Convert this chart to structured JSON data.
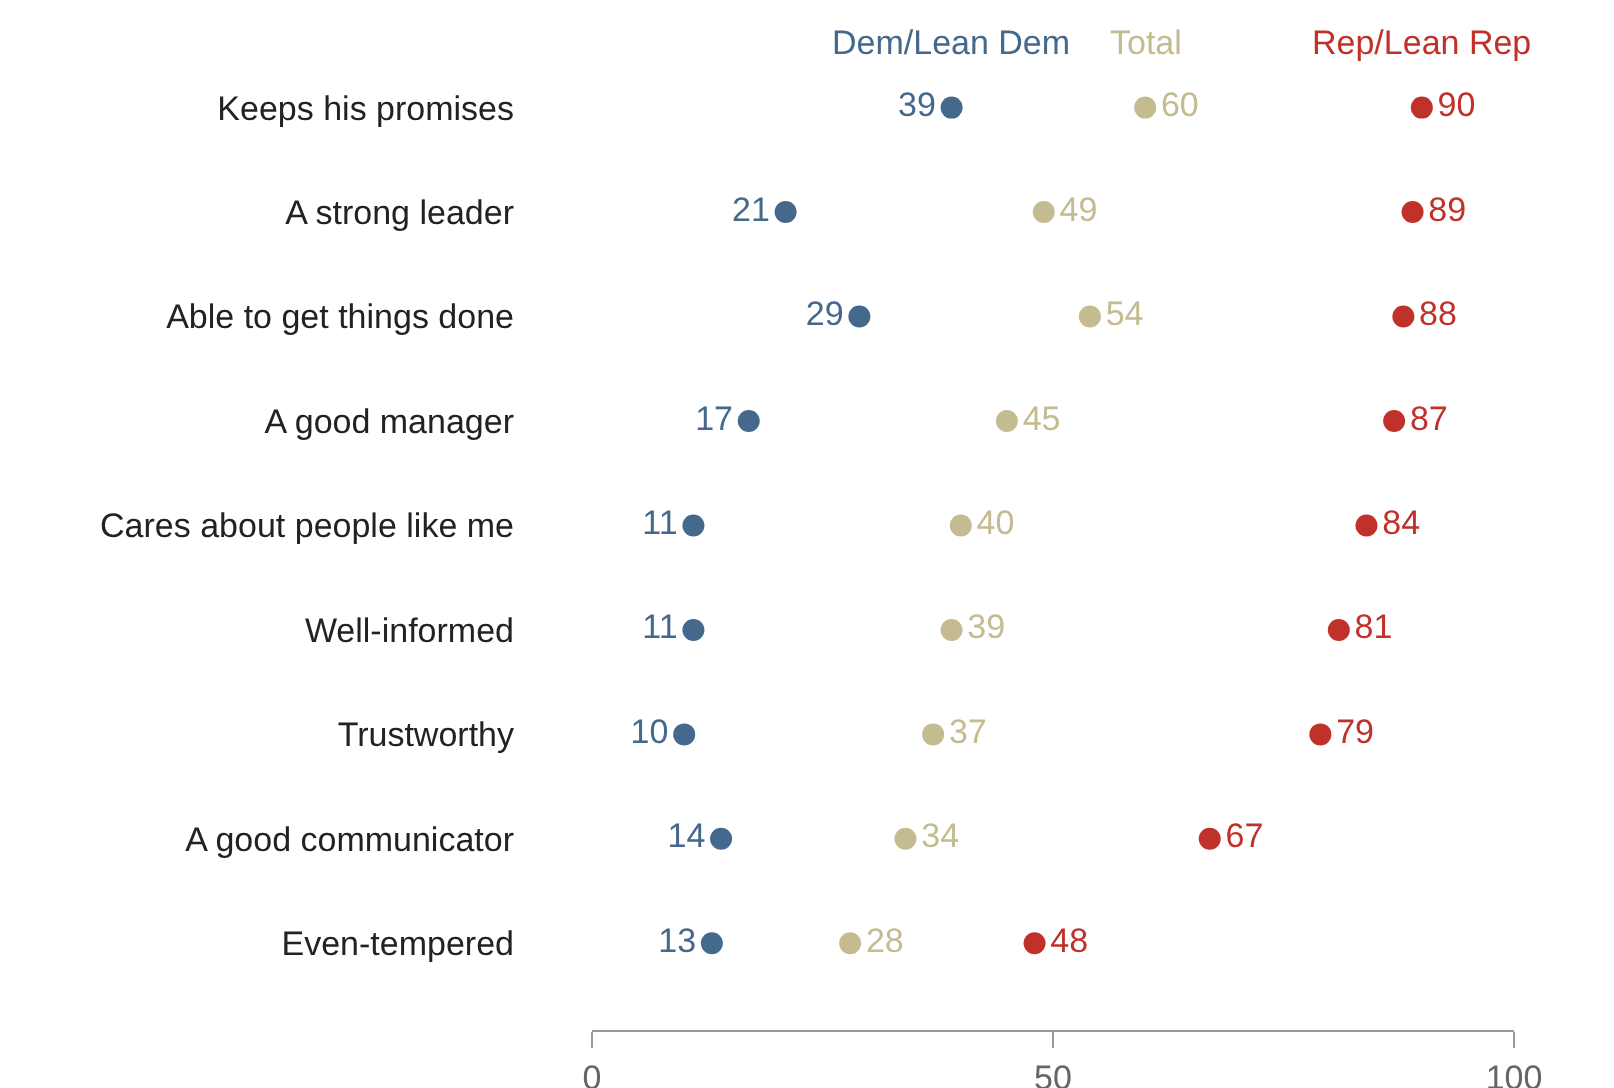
{
  "chart_data": {
    "type": "scatter",
    "orientation": "horizontal",
    "categories": [
      "Keeps his promises",
      "A strong leader",
      "Able to get things done",
      "A good manager",
      "Cares about people like me",
      "Well-informed",
      "Trustworthy",
      "A good communicator",
      "Even-tempered"
    ],
    "series": [
      {
        "name": "Dem/Lean Dem",
        "color": "#44698d",
        "values": [
          39,
          21,
          29,
          17,
          11,
          11,
          10,
          14,
          13
        ]
      },
      {
        "name": "Total",
        "color": "#c4bb91",
        "values": [
          60,
          49,
          54,
          45,
          40,
          39,
          37,
          34,
          28
        ]
      },
      {
        "name": "Rep/Lean Rep",
        "color": "#c0312a",
        "values": [
          90,
          89,
          88,
          87,
          84,
          81,
          79,
          67,
          48
        ]
      }
    ],
    "xlim": [
      0,
      100
    ],
    "xticks": [
      0,
      50,
      100
    ],
    "data_labels": true,
    "legend": "top",
    "marker": "circle"
  }
}
